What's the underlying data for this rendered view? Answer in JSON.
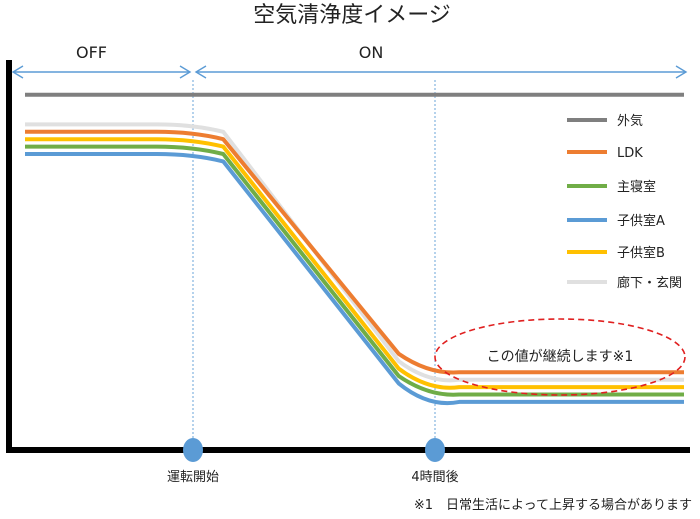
{
  "chart_data": {
    "type": "line",
    "title": "空気清浄度イメージ",
    "xlabel": "",
    "ylabel": "",
    "periods": [
      {
        "label": "OFF",
        "from": -3,
        "to": 0
      },
      {
        "label": "ON",
        "from": 0,
        "to": 10
      }
    ],
    "markers": [
      {
        "x": 0,
        "label": "運転開始"
      },
      {
        "x": 4,
        "label": "4時間後"
      }
    ],
    "xlim": [
      -3,
      10
    ],
    "ylim": [
      0,
      100
    ],
    "x": [
      -3,
      -0.6,
      0,
      0.5,
      3.4,
      3.9,
      4.4,
      7
    ],
    "series": [
      {
        "name": "外気",
        "color": "#7f7f7f",
        "values": [
          96,
          96,
          96,
          96,
          96,
          96,
          96,
          96
        ]
      },
      {
        "name": "LDK",
        "color": "#ed7d31",
        "values": [
          86,
          86,
          86,
          84,
          26,
          22,
          21,
          21
        ]
      },
      {
        "name": "主寝室",
        "color": "#70ad47",
        "values": [
          82,
          82,
          82,
          80,
          20,
          16,
          15,
          15
        ]
      },
      {
        "name": "子供室A",
        "color": "#5b9bd5",
        "values": [
          80,
          80,
          80,
          78,
          18,
          13,
          13,
          13
        ]
      },
      {
        "name": "子供室B",
        "color": "#ffc000",
        "values": [
          84,
          84,
          84,
          82,
          22,
          17.5,
          17,
          17
        ]
      },
      {
        "name": "廊下・玄関",
        "color": "#e0e0e0",
        "values": [
          88,
          88,
          88,
          86,
          24,
          19.5,
          19,
          19
        ]
      }
    ],
    "annotation": "この値が継続します※1",
    "footnote": "※1　日常生活によって上昇する場合があります",
    "grid": false,
    "legend_position": "right"
  }
}
